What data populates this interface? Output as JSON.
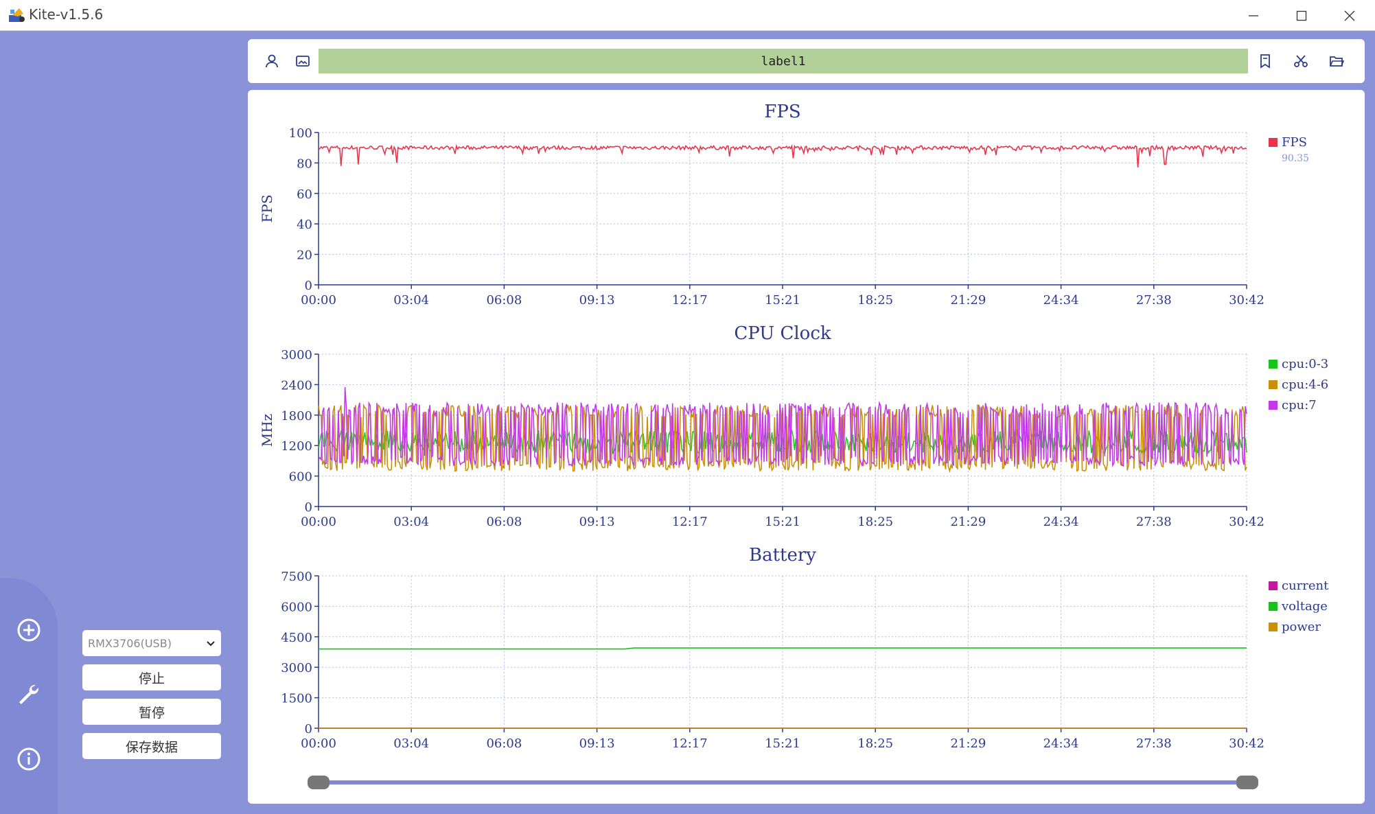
{
  "window": {
    "title": "Kite-v1.5.6"
  },
  "toolbar": {
    "label_text": "label1"
  },
  "sidebar": {
    "device": "RMX3706(USB)",
    "stop_label": "停止",
    "pause_label": "暂停",
    "save_label": "保存数据"
  },
  "icons": {
    "app": "kite-app-icon",
    "minimize": "minimize-icon",
    "maximize": "maximize-icon",
    "close": "close-icon",
    "user": "user-icon",
    "image": "image-icon",
    "bookmark": "bookmark-icon",
    "scissors": "scissors-icon",
    "folder": "folder-open-icon",
    "add": "add-circle-icon",
    "wrench": "wrench-icon",
    "info": "info-icon",
    "dropdown": "chevron-down-icon"
  },
  "colors": {
    "background": "#8a93d8",
    "label_bar": "#b1d198",
    "axis": "#2d3a8c",
    "fps": "#e8334a",
    "cpu03": "#19c219",
    "cpu46": "#c8900a",
    "cpu7": "#c23ae8",
    "voltage": "#19c219",
    "current": "#c2199e",
    "power": "#c8900a"
  },
  "chart_data": [
    {
      "type": "line",
      "title": "FPS",
      "ylabel": "FPS",
      "ylim": [
        0,
        100
      ],
      "yticks": [
        "0",
        "20",
        "40",
        "60",
        "80",
        "100"
      ],
      "xticks": [
        "00:00",
        "03:04",
        "06:08",
        "09:13",
        "12:17",
        "15:21",
        "18:25",
        "21:29",
        "24:34",
        "27:38",
        "30:42"
      ],
      "grid": true,
      "legend_position": "right",
      "series": [
        {
          "name": "FPS",
          "color": "#e8334a",
          "current_value": "90.35",
          "baseline": 90,
          "dips": [
            [
              0.75,
              78
            ],
            [
              1.3,
              79
            ],
            [
              2.6,
              80
            ],
            [
              15.7,
              83
            ],
            [
              27.1,
              77
            ],
            [
              28.0,
              79
            ]
          ]
        }
      ]
    },
    {
      "type": "line",
      "title": "CPU Clock",
      "ylabel": "MHz",
      "ylim": [
        0,
        3000
      ],
      "yticks": [
        "0",
        "600",
        "1200",
        "1800",
        "2400",
        "3000"
      ],
      "xticks": [
        "00:00",
        "03:04",
        "06:08",
        "09:13",
        "12:17",
        "15:21",
        "18:25",
        "21:29",
        "24:34",
        "27:38",
        "30:42"
      ],
      "grid": true,
      "legend_position": "right",
      "series": [
        {
          "name": "cpu:0-3",
          "color": "#19c219",
          "min": 1050,
          "max": 1500
        },
        {
          "name": "cpu:4-6",
          "color": "#c8900a",
          "min": 700,
          "max": 2000
        },
        {
          "name": "cpu:7",
          "color": "#c23ae8",
          "min": 800,
          "max": 2050,
          "peak": 2350
        }
      ]
    },
    {
      "type": "line",
      "title": "Battery",
      "ylabel": "",
      "ylim": [
        0,
        7500
      ],
      "yticks": [
        "0",
        "1500",
        "3000",
        "4500",
        "6000",
        "7500"
      ],
      "xticks": [
        "00:00",
        "03:04",
        "06:08",
        "09:13",
        "12:17",
        "15:21",
        "18:25",
        "21:29",
        "24:34",
        "27:38",
        "30:42"
      ],
      "grid": true,
      "legend_position": "right",
      "series": [
        {
          "name": "current",
          "color": "#c2199e",
          "values": [
            0,
            0
          ]
        },
        {
          "name": "voltage",
          "color": "#19c219",
          "values": [
            3900,
            3950
          ]
        },
        {
          "name": "power",
          "color": "#c8900a",
          "values": [
            0,
            0
          ]
        }
      ]
    }
  ]
}
